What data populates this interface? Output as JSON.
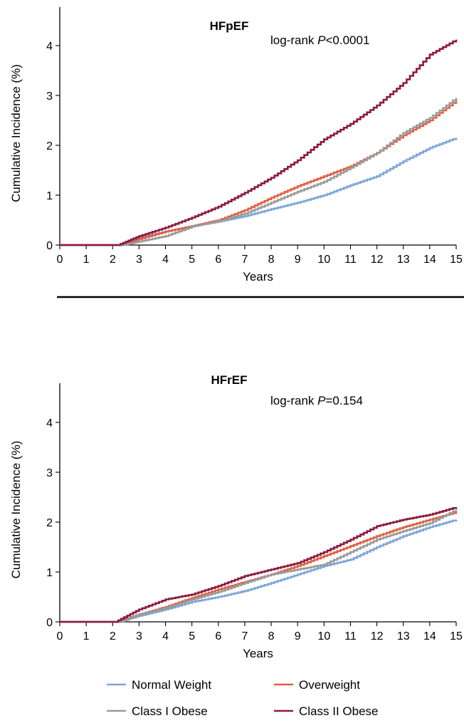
{
  "chart_data": [
    {
      "type": "line",
      "title": "HFpEF",
      "annotation": {
        "prefix": "log-rank ",
        "italic": "P",
        "suffix": "<0.0001"
      },
      "xlabel": "Years",
      "ylabel": "Cumulative Incidence (%)",
      "xlim": [
        0,
        15
      ],
      "ylim": [
        0,
        4.7
      ],
      "xticks": [
        "0",
        "1",
        "2",
        "3",
        "4",
        "5",
        "6",
        "7",
        "8",
        "9",
        "10",
        "11",
        "12",
        "13",
        "14",
        "15"
      ],
      "yticks": [
        "0",
        "1",
        "2",
        "3",
        "4"
      ],
      "grid": false,
      "series": [
        {
          "name": "Normal Weight",
          "color": "#7ea6d8",
          "x": [
            0,
            2.3,
            3,
            4,
            5,
            6,
            7,
            8,
            9,
            10,
            11,
            12,
            13,
            14,
            15
          ],
          "y": [
            0,
            0,
            0.15,
            0.27,
            0.38,
            0.47,
            0.58,
            0.72,
            0.85,
            1.0,
            1.2,
            1.38,
            1.68,
            1.95,
            2.15
          ]
        },
        {
          "name": "Overweight",
          "color": "#e06040",
          "x": [
            0,
            2.3,
            3,
            4,
            5,
            6,
            7,
            8,
            9,
            10,
            11,
            12,
            13,
            14,
            15
          ],
          "y": [
            0,
            0,
            0.12,
            0.27,
            0.38,
            0.5,
            0.7,
            0.95,
            1.18,
            1.38,
            1.58,
            1.85,
            2.2,
            2.5,
            2.9
          ]
        },
        {
          "name": "Class I Obese",
          "color": "#9a9a9a",
          "x": [
            0,
            2.4,
            3,
            4,
            5,
            6,
            7,
            8,
            9,
            10,
            11,
            12,
            13,
            14,
            15
          ],
          "y": [
            0,
            0,
            0.07,
            0.18,
            0.37,
            0.48,
            0.63,
            0.85,
            1.07,
            1.27,
            1.55,
            1.85,
            2.25,
            2.55,
            2.95
          ]
        },
        {
          "name": "Class II Obese",
          "color": "#8b1a3e",
          "x": [
            0,
            2.2,
            3,
            4,
            5,
            6,
            7,
            8,
            9,
            10,
            11,
            12,
            13,
            14,
            15
          ],
          "y": [
            0,
            0,
            0.18,
            0.35,
            0.55,
            0.77,
            1.05,
            1.35,
            1.7,
            2.12,
            2.43,
            2.8,
            3.25,
            3.82,
            4.12
          ]
        }
      ]
    },
    {
      "type": "line",
      "title": "HFrEF",
      "annotation": {
        "prefix": "log-rank ",
        "italic": "P",
        "suffix": "=0.154"
      },
      "xlabel": "Years",
      "ylabel": "Cumulative Incidence (%)",
      "xlim": [
        0,
        15
      ],
      "ylim": [
        0,
        4.7
      ],
      "xticks": [
        "0",
        "1",
        "2",
        "3",
        "4",
        "5",
        "6",
        "7",
        "8",
        "9",
        "10",
        "11",
        "12",
        "13",
        "14",
        "15"
      ],
      "yticks": [
        "0",
        "1",
        "2",
        "3",
        "4"
      ],
      "grid": false,
      "series": [
        {
          "name": "Normal Weight",
          "color": "#7ea6d8",
          "x": [
            0,
            2.2,
            3,
            4,
            5,
            6,
            7,
            8,
            9,
            10,
            11,
            12,
            13,
            14,
            15
          ],
          "y": [
            0,
            0,
            0.12,
            0.25,
            0.4,
            0.5,
            0.62,
            0.78,
            0.95,
            1.12,
            1.25,
            1.5,
            1.72,
            1.9,
            2.05
          ]
        },
        {
          "name": "Overweight",
          "color": "#e06040",
          "x": [
            0,
            2.2,
            3,
            4,
            5,
            6,
            7,
            8,
            9,
            10,
            11,
            12,
            13,
            14,
            15
          ],
          "y": [
            0,
            0,
            0.15,
            0.3,
            0.48,
            0.65,
            0.8,
            0.95,
            1.12,
            1.32,
            1.52,
            1.72,
            1.9,
            2.05,
            2.2
          ]
        },
        {
          "name": "Class I Obese",
          "color": "#9a9a9a",
          "x": [
            0,
            2.3,
            3,
            4,
            5,
            6,
            7,
            8,
            9,
            10,
            11,
            12,
            13,
            14,
            15
          ],
          "y": [
            0,
            0,
            0.15,
            0.28,
            0.45,
            0.6,
            0.78,
            0.95,
            1.05,
            1.15,
            1.4,
            1.65,
            1.82,
            1.98,
            2.25
          ]
        },
        {
          "name": "Class II Obese",
          "color": "#8b1a3e",
          "x": [
            0,
            2.1,
            3,
            4,
            5,
            6,
            7,
            8,
            9,
            10,
            11,
            12,
            13,
            14,
            15
          ],
          "y": [
            0,
            0,
            0.25,
            0.45,
            0.55,
            0.72,
            0.92,
            1.05,
            1.18,
            1.4,
            1.65,
            1.92,
            2.05,
            2.15,
            2.3
          ]
        }
      ]
    }
  ],
  "legend": {
    "placement": "bottom",
    "items": [
      {
        "label": "Normal Weight",
        "color": "#7ea6d8"
      },
      {
        "label": "Overweight",
        "color": "#e06040"
      },
      {
        "label": "Class I Obese",
        "color": "#9a9a9a"
      },
      {
        "label": "Class II Obese",
        "color": "#8b1a3e"
      }
    ]
  }
}
